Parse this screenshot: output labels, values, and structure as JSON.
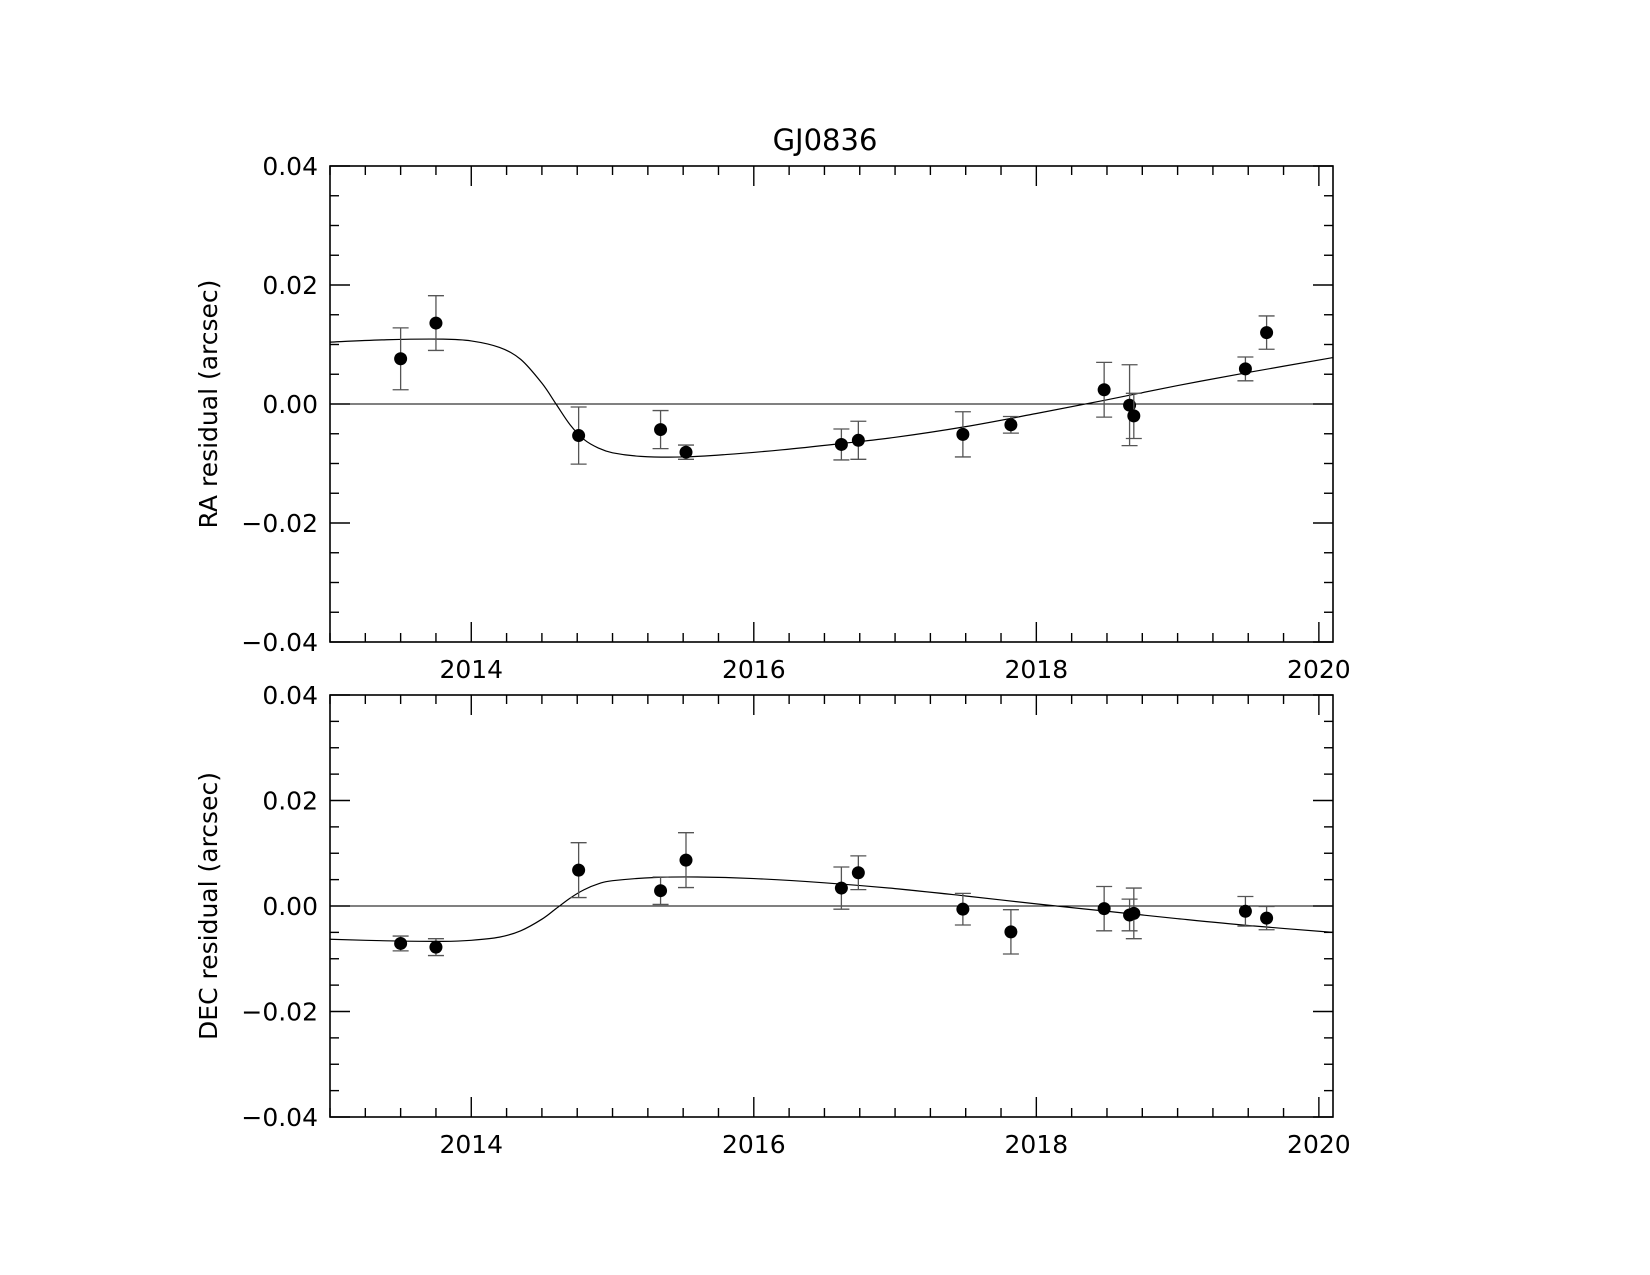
{
  "title": "GJ0836",
  "chart_data": [
    {
      "type": "scatter",
      "ylabel": "RA residual (arcsec)",
      "xlabel": "",
      "xlim": [
        2013.0,
        2020.1
      ],
      "ylim": [
        -0.04,
        0.04
      ],
      "x_ticks": [
        2014,
        2016,
        2018,
        2020
      ],
      "x_tick_labels": [
        "2014",
        "2016",
        "2018",
        "2020"
      ],
      "y_ticks": [
        -0.04,
        -0.02,
        0.0,
        0.02,
        0.04
      ],
      "y_tick_labels": [
        "−0.04",
        "−0.02",
        "0.00",
        "0.02",
        "0.04"
      ],
      "zero_line": true,
      "grid": false,
      "points": [
        {
          "x": 2013.5,
          "y": 0.0076,
          "err": 0.0052
        },
        {
          "x": 2013.75,
          "y": 0.0136,
          "err": 0.0046
        },
        {
          "x": 2014.76,
          "y": -0.0053,
          "err": 0.0048
        },
        {
          "x": 2015.34,
          "y": -0.0043,
          "err": 0.0032
        },
        {
          "x": 2015.52,
          "y": -0.0081,
          "err": 0.0012
        },
        {
          "x": 2016.62,
          "y": -0.0068,
          "err": 0.0026
        },
        {
          "x": 2016.74,
          "y": -0.0061,
          "err": 0.0032
        },
        {
          "x": 2017.48,
          "y": -0.0051,
          "err": 0.0038
        },
        {
          "x": 2017.82,
          "y": -0.0035,
          "err": 0.0014
        },
        {
          "x": 2018.48,
          "y": 0.0024,
          "err": 0.0046
        },
        {
          "x": 2018.66,
          "y": -0.0002,
          "err": 0.0068
        },
        {
          "x": 2018.69,
          "y": -0.002,
          "err": 0.0038
        },
        {
          "x": 2019.48,
          "y": 0.0059,
          "err": 0.002
        },
        {
          "x": 2019.63,
          "y": 0.012,
          "err": 0.0028
        }
      ],
      "model_curve": {
        "x": [
          2013.0,
          2013.4,
          2013.8,
          2014.0,
          2014.2,
          2014.35,
          2014.5,
          2014.6,
          2014.7,
          2014.8,
          2014.9,
          2015.0,
          2015.2,
          2015.5,
          2015.8,
          2016.2,
          2016.6,
          2017.0,
          2017.5,
          2018.0,
          2018.5,
          2019.0,
          2019.5,
          2020.1
        ],
        "y": [
          0.0104,
          0.0108,
          0.0109,
          0.0106,
          0.0095,
          0.0075,
          0.0035,
          0.0,
          -0.0035,
          -0.006,
          -0.0074,
          -0.0082,
          -0.0088,
          -0.0089,
          -0.0085,
          -0.0077,
          -0.0067,
          -0.0056,
          -0.0038,
          -0.0016,
          0.0007,
          0.0031,
          0.0053,
          0.0078
        ]
      }
    },
    {
      "type": "scatter",
      "ylabel": "DEC residual (arcsec)",
      "xlabel": "",
      "xlim": [
        2013.0,
        2020.1
      ],
      "ylim": [
        -0.04,
        0.04
      ],
      "x_ticks": [
        2014,
        2016,
        2018,
        2020
      ],
      "x_tick_labels": [
        "2014",
        "2016",
        "2018",
        "2020"
      ],
      "y_ticks": [
        -0.04,
        -0.02,
        0.0,
        0.02,
        0.04
      ],
      "y_tick_labels": [
        "−0.04",
        "−0.02",
        "0.00",
        "0.02",
        "0.04"
      ],
      "zero_line": true,
      "grid": false,
      "points": [
        {
          "x": 2013.5,
          "y": -0.0071,
          "err": 0.0014
        },
        {
          "x": 2013.75,
          "y": -0.0078,
          "err": 0.0016
        },
        {
          "x": 2014.76,
          "y": 0.0068,
          "err": 0.0052
        },
        {
          "x": 2015.34,
          "y": 0.0029,
          "err": 0.0026
        },
        {
          "x": 2015.52,
          "y": 0.0087,
          "err": 0.0052
        },
        {
          "x": 2016.62,
          "y": 0.0034,
          "err": 0.004
        },
        {
          "x": 2016.74,
          "y": 0.0063,
          "err": 0.0032
        },
        {
          "x": 2017.48,
          "y": -0.0006,
          "err": 0.003
        },
        {
          "x": 2017.82,
          "y": -0.0049,
          "err": 0.0042
        },
        {
          "x": 2018.48,
          "y": -0.0005,
          "err": 0.0042
        },
        {
          "x": 2018.66,
          "y": -0.0017,
          "err": 0.003
        },
        {
          "x": 2018.69,
          "y": -0.0014,
          "err": 0.0048
        },
        {
          "x": 2019.48,
          "y": -0.001,
          "err": 0.0028
        },
        {
          "x": 2019.63,
          "y": -0.0023,
          "err": 0.0022
        }
      ],
      "model_curve": {
        "x": [
          2013.0,
          2013.4,
          2013.8,
          2014.0,
          2014.2,
          2014.35,
          2014.5,
          2014.6,
          2014.7,
          2014.8,
          2014.9,
          2015.0,
          2015.3,
          2015.6,
          2016.0,
          2016.5,
          2017.0,
          2017.5,
          2018.0,
          2018.5,
          2019.0,
          2019.5,
          2020.1
        ],
        "y": [
          -0.0063,
          -0.0066,
          -0.0067,
          -0.0065,
          -0.0059,
          -0.0047,
          -0.0025,
          -0.0005,
          0.0015,
          0.0031,
          0.0042,
          0.0048,
          0.0054,
          0.0055,
          0.0052,
          0.0044,
          0.0033,
          0.0019,
          0.0004,
          -0.001,
          -0.0024,
          -0.0037,
          -0.005
        ]
      }
    }
  ]
}
